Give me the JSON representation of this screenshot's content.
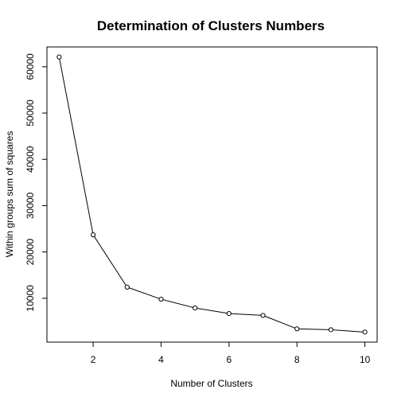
{
  "chart_data": {
    "type": "line",
    "title": "Determination of Clusters Numbers",
    "xlabel": "Number of Clusters",
    "ylabel": "Within groups sum of squares",
    "x": [
      1,
      2,
      3,
      4,
      5,
      6,
      7,
      8,
      9,
      10
    ],
    "series": [
      {
        "values": [
          62100,
          23700,
          12400,
          9800,
          7900,
          6700,
          6300,
          3400,
          3200,
          2700
        ]
      }
    ],
    "xlim": [
      0.64,
      10.36
    ],
    "ylim": [
      530,
      64270
    ],
    "xticks": [
      2,
      4,
      6,
      8,
      10
    ],
    "yticks": [
      10000,
      20000,
      30000,
      40000,
      50000,
      60000
    ],
    "grid": false,
    "markers": "open-circle",
    "line_color": "#000000"
  }
}
